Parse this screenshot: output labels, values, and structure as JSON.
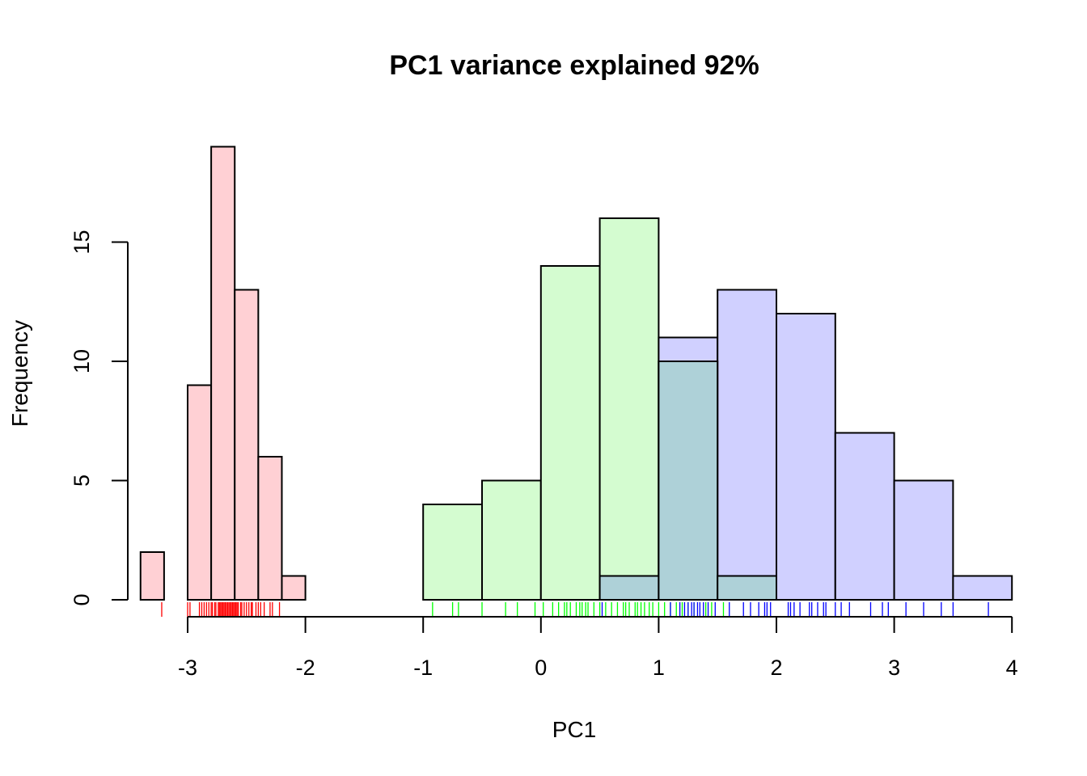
{
  "chart_data": {
    "type": "bar",
    "title": "PC1 variance explained 92%",
    "xlabel": "PC1",
    "ylabel": "Frequency",
    "xlim": [
      -3.4,
      4
    ],
    "ylim": [
      0,
      19
    ],
    "x_ticks": [
      -3,
      -2,
      -1,
      0,
      1,
      2,
      3,
      4
    ],
    "y_ticks": [
      0,
      5,
      10,
      15
    ],
    "grid": false,
    "legend": "none",
    "series": [
      {
        "color": "#ffd0d4",
        "rug_color": "#ff0000",
        "bins": [
          {
            "x0": -3.4,
            "x1": -3.2,
            "count": 2
          },
          {
            "x0": -3.2,
            "x1": -3.0,
            "count": 0
          },
          {
            "x0": -3.0,
            "x1": -2.8,
            "count": 9
          },
          {
            "x0": -2.8,
            "x1": -2.6,
            "count": 19
          },
          {
            "x0": -2.6,
            "x1": -2.4,
            "count": 13
          },
          {
            "x0": -2.4,
            "x1": -2.2,
            "count": 6
          },
          {
            "x0": -2.2,
            "x1": -2.0,
            "count": 1
          }
        ],
        "rug": [
          -3.22,
          -3.0,
          -2.98,
          -2.9,
          -2.88,
          -2.86,
          -2.84,
          -2.82,
          -2.8,
          -2.79,
          -2.77,
          -2.76,
          -2.74,
          -2.73,
          -2.72,
          -2.71,
          -2.7,
          -2.69,
          -2.68,
          -2.67,
          -2.66,
          -2.65,
          -2.64,
          -2.63,
          -2.62,
          -2.61,
          -2.6,
          -2.59,
          -2.58,
          -2.57,
          -2.55,
          -2.54,
          -2.52,
          -2.5,
          -2.48,
          -2.46,
          -2.45,
          -2.42,
          -2.4,
          -2.38,
          -2.35,
          -2.3,
          -2.28,
          -2.22
        ]
      },
      {
        "color": "#d4fcd0",
        "rug_color": "#00ff00",
        "bins": [
          {
            "x0": -1.0,
            "x1": -0.5,
            "count": 4
          },
          {
            "x0": -0.5,
            "x1": 0.0,
            "count": 5
          },
          {
            "x0": 0.0,
            "x1": 0.5,
            "count": 14
          },
          {
            "x0": 0.5,
            "x1": 1.0,
            "count": 16
          },
          {
            "x0": 1.0,
            "x1": 1.5,
            "count": 10
          },
          {
            "x0": 1.5,
            "x1": 2.0,
            "count": 1
          }
        ],
        "rug": [
          -0.92,
          -0.75,
          -0.7,
          -0.5,
          -0.3,
          -0.2,
          -0.05,
          0.02,
          0.1,
          0.15,
          0.2,
          0.22,
          0.25,
          0.3,
          0.33,
          0.35,
          0.38,
          0.4,
          0.45,
          0.5,
          0.55,
          0.6,
          0.65,
          0.7,
          0.72,
          0.75,
          0.8,
          0.82,
          0.85,
          0.88,
          0.92,
          0.95,
          1.0,
          1.05,
          1.1,
          1.15,
          1.2,
          1.25,
          1.3,
          1.4,
          1.45,
          1.55
        ]
      },
      {
        "color": "#d0d0ff",
        "rug_color": "#0000ff",
        "bins": [
          {
            "x0": 0.5,
            "x1": 1.0,
            "count": 1
          },
          {
            "x0": 1.0,
            "x1": 1.5,
            "count": 11
          },
          {
            "x0": 1.5,
            "x1": 2.0,
            "count": 13
          },
          {
            "x0": 2.0,
            "x1": 2.5,
            "count": 12
          },
          {
            "x0": 2.5,
            "x1": 3.0,
            "count": 7
          },
          {
            "x0": 3.0,
            "x1": 3.5,
            "count": 5
          },
          {
            "x0": 3.5,
            "x1": 4.0,
            "count": 1
          }
        ],
        "rug": [
          0.52,
          1.1,
          1.18,
          1.22,
          1.25,
          1.28,
          1.3,
          1.33,
          1.35,
          1.38,
          1.42,
          1.48,
          1.6,
          1.72,
          1.78,
          1.85,
          1.9,
          1.92,
          1.95,
          2.1,
          2.12,
          2.15,
          2.2,
          2.28,
          2.3,
          2.35,
          2.4,
          2.42,
          2.5,
          2.55,
          2.62,
          2.8,
          2.9,
          2.95,
          3.1,
          3.25,
          3.4,
          3.5,
          3.8
        ]
      }
    ],
    "overlap_color": "#aed1d8"
  }
}
